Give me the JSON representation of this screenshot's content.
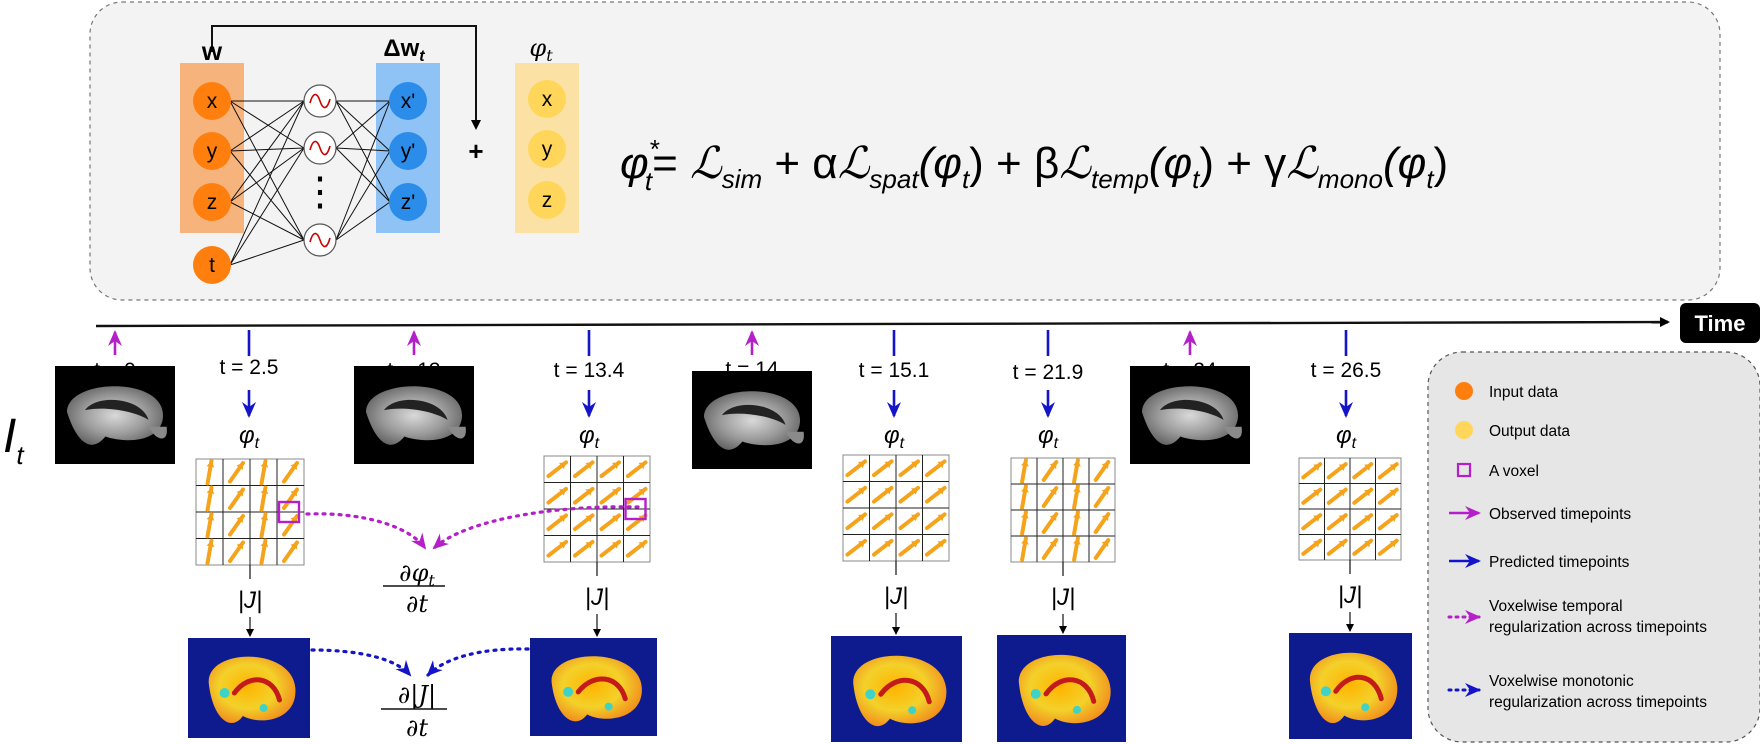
{
  "network": {
    "input_label": "w",
    "delta_label": "Δw",
    "delta_sub": "t",
    "phi_label": "φ",
    "phi_sub": "t",
    "inputs": [
      "x",
      "y",
      "z"
    ],
    "time_node": "t",
    "outputs": [
      "x'",
      "y'",
      "z'"
    ],
    "phi_nodes": [
      "x",
      "y",
      "z"
    ],
    "plus_sign": "+",
    "hidden_dots": "⋮",
    "colors": {
      "input_band": "#f6b47c",
      "input_node": "#ff7f0e",
      "delta_band": "#8fc2f5",
      "delta_node": "#2b8cea",
      "phi_band": "#fbe2a4",
      "phi_node": "#ffd65a",
      "sine": "#cc0000"
    }
  },
  "loss_equation": {
    "lhs": "φ",
    "lhs_sup": "*",
    "lhs_sub": "t",
    "terms": [
      {
        "prefix": "= ",
        "name": "ℒ",
        "sub": "sim",
        "arg": ""
      },
      {
        "prefix": " + α",
        "name": "ℒ",
        "sub": "spat",
        "arg": "(φ",
        "arg_sub": "t",
        "arg_close": ")"
      },
      {
        "prefix": " + β",
        "name": "ℒ",
        "sub": "temp",
        "arg": "(φ",
        "arg_sub": "t",
        "arg_close": ")"
      },
      {
        "prefix": " + γ",
        "name": "ℒ",
        "sub": "mono",
        "arg": "(φ",
        "arg_sub": "t",
        "arg_close": ")"
      }
    ]
  },
  "timeline": {
    "axis_label": "Time",
    "row_label": "I",
    "row_label_sub": "t",
    "timepoints": [
      {
        "label": "t = 0",
        "kind": "observed"
      },
      {
        "label": "t = 2.5",
        "kind": "predicted",
        "field": "swirl",
        "voxel": true,
        "jac": "A"
      },
      {
        "label": "t = 13",
        "kind": "observed"
      },
      {
        "label": "t = 13.4",
        "kind": "predicted",
        "field": "diag",
        "voxel": true,
        "jac": "B"
      },
      {
        "label": "t = 14",
        "kind": "observed"
      },
      {
        "label": "t = 15.1",
        "kind": "predicted",
        "field": "diag",
        "voxel": false,
        "jac": "C"
      },
      {
        "label": "t = 21.9",
        "kind": "predicted",
        "field": "swirl",
        "voxel": false,
        "jac": "D"
      },
      {
        "label": "t = 24",
        "kind": "observed"
      },
      {
        "label": "t = 26.5",
        "kind": "predicted",
        "field": "diag",
        "voxel": false,
        "jac": "E"
      }
    ],
    "phi_label": "φ",
    "phi_sub": "t",
    "jacobian_label": "|J|",
    "temporal_derivative": {
      "num": "∂φ",
      "num_sub": "t",
      "den": "∂t"
    },
    "monotonic_derivative": {
      "num": "∂|J|",
      "den": "∂t"
    }
  },
  "legend": {
    "items": [
      {
        "icon": "orange-dot-icon",
        "text": "Input data"
      },
      {
        "icon": "yellow-dot-icon",
        "text": "Output data"
      },
      {
        "icon": "voxel-square-icon",
        "text": "A voxel"
      },
      {
        "icon": "magenta-arrow-icon",
        "text": "Observed timepoints"
      },
      {
        "icon": "blue-arrow-icon",
        "text": "Predicted timepoints"
      },
      {
        "icon": "magenta-dotted-arrow-icon",
        "text": "Voxelwise temporal",
        "text2": "regularization across timepoints"
      },
      {
        "icon": "blue-dotted-arrow-icon",
        "text": "Voxelwise monotonic",
        "text2": "regularization across timepoints"
      }
    ],
    "colors": {
      "observed": "#b51fc9",
      "predicted": "#1414c8",
      "field_arrow": "#f5a31a"
    }
  }
}
